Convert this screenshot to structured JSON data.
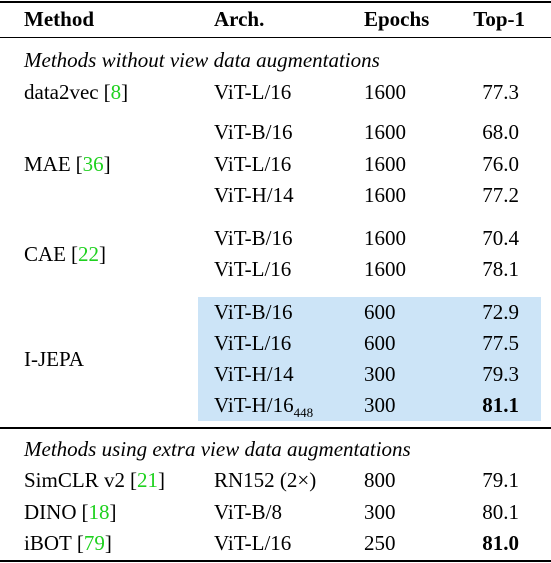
{
  "table": {
    "header": [
      "Method",
      "Arch.",
      "Epochs",
      "Top-1"
    ],
    "sections": [
      {
        "title": "Methods without view data augmentations",
        "groups": [
          {
            "method": "data2vec",
            "ref": [
              "[",
              "8",
              "]"
            ],
            "rows": [
              {
                "arch": "ViT-L/16",
                "epochs": 1600,
                "top1": "77.3"
              }
            ]
          },
          {
            "method": "MAE",
            "ref": [
              "[",
              "36",
              "]"
            ],
            "rows": [
              {
                "arch": "ViT-B/16",
                "epochs": 1600,
                "top1": "68.0"
              },
              {
                "arch": "ViT-L/16",
                "epochs": 1600,
                "top1": "76.0"
              },
              {
                "arch": "ViT-H/14",
                "epochs": 1600,
                "top1": "77.2"
              }
            ]
          },
          {
            "method": "CAE",
            "ref": [
              "[",
              "22",
              "]"
            ],
            "rows": [
              {
                "arch": "ViT-B/16",
                "epochs": 1600,
                "top1": "70.4"
              },
              {
                "arch": "ViT-L/16",
                "epochs": 1600,
                "top1": "78.1"
              }
            ]
          },
          {
            "method": "I-JEPA",
            "highlight": true,
            "rows": [
              {
                "arch": "ViT-B/16",
                "epochs": 600,
                "top1": "72.9"
              },
              {
                "arch": "ViT-L/16",
                "epochs": 600,
                "top1": "77.5"
              },
              {
                "arch": "ViT-H/14",
                "epochs": 300,
                "top1": "79.3"
              },
              {
                "arch": "ViT-H/16",
                "arch_sub": "448",
                "epochs": 300,
                "top1": "81.1",
                "bold": true
              }
            ]
          }
        ]
      },
      {
        "title": "Methods using extra view data augmentations",
        "groups": [
          {
            "method": "SimCLR v2",
            "ref": [
              "[",
              "21",
              "]"
            ],
            "rows": [
              {
                "arch": "RN152 (2×)",
                "epochs": 800,
                "top1": "79.1"
              }
            ]
          },
          {
            "method": "DINO",
            "ref": [
              "[",
              "18",
              "]"
            ],
            "rows": [
              {
                "arch": "ViT-B/8",
                "epochs": 300,
                "top1": "80.1"
              }
            ]
          },
          {
            "method": "iBOT",
            "ref": [
              "[",
              "79",
              "]"
            ],
            "rows": [
              {
                "arch": "ViT-L/16",
                "epochs": 250,
                "top1": "81.0",
                "bold": true
              }
            ]
          }
        ]
      }
    ]
  }
}
